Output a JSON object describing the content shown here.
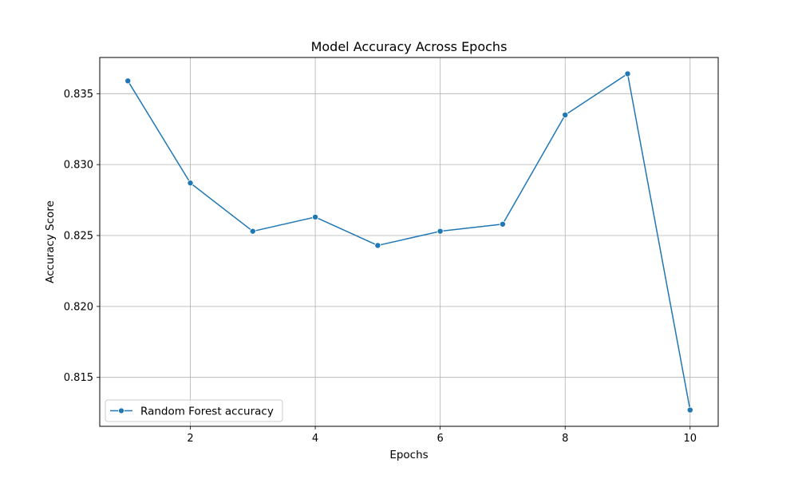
{
  "chart_data": {
    "type": "line",
    "title": "Model Accuracy Across Epochs",
    "xlabel": "Epochs",
    "ylabel": "Accuracy Score",
    "x": [
      1,
      2,
      3,
      4,
      5,
      6,
      7,
      8,
      9,
      10
    ],
    "series": [
      {
        "name": "Random Forest accuracy",
        "values": [
          0.8359,
          0.8287,
          0.8253,
          0.8263,
          0.8243,
          0.8253,
          0.8258,
          0.8335,
          0.8364,
          0.8127
        ],
        "color": "#1f77b4",
        "marker": "circle"
      }
    ],
    "xlim": [
      0.55,
      10.45
    ],
    "ylim": [
      0.81155,
      0.83755
    ],
    "xticks": [
      2,
      4,
      6,
      8,
      10
    ],
    "xtick_labels": [
      "2",
      "4",
      "6",
      "8",
      "10"
    ],
    "yticks": [
      0.815,
      0.82,
      0.825,
      0.83,
      0.835
    ],
    "ytick_labels": [
      "0.815",
      "0.820",
      "0.825",
      "0.830",
      "0.835"
    ],
    "grid": true,
    "legend_position": "lower-left"
  }
}
